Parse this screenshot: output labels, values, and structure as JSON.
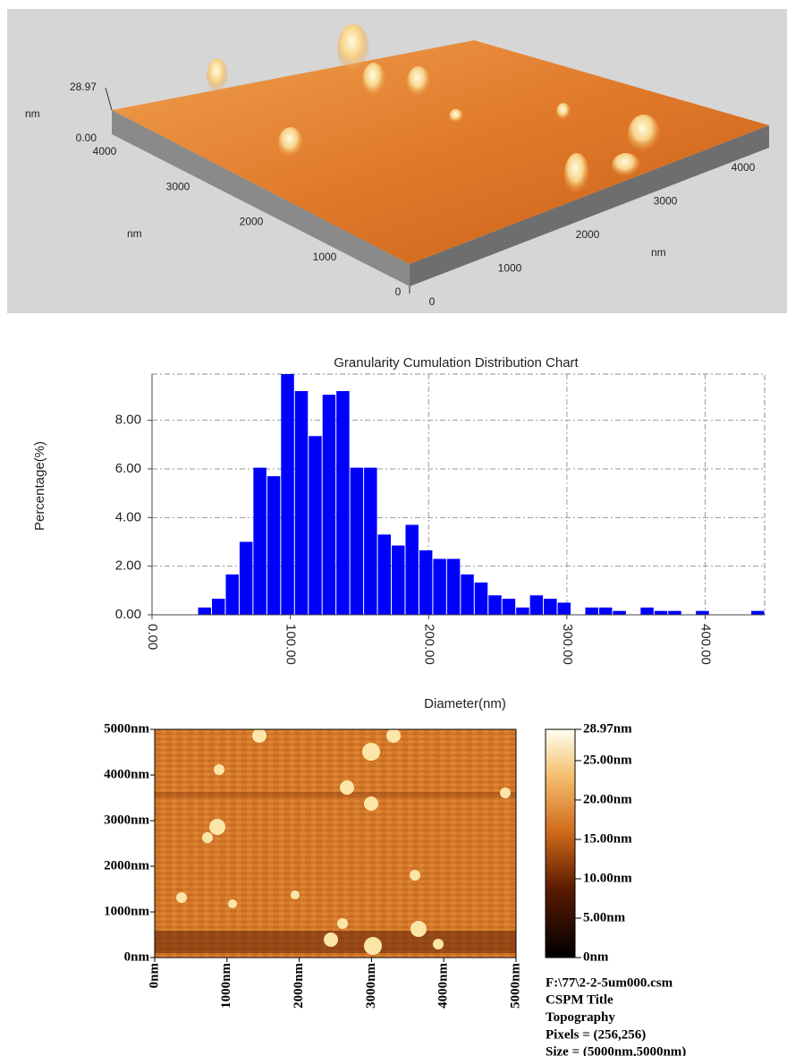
{
  "chart_data": [
    {
      "type": "surface3d",
      "xlim": [
        0,
        5000
      ],
      "ylim": [
        0,
        5000
      ],
      "zlim": [
        0,
        28.97
      ],
      "xticks": [
        0,
        1000,
        2000,
        3000,
        4000
      ],
      "yticks": [
        0,
        1000,
        2000,
        3000,
        4000
      ],
      "zticks": [
        {
          "value": 0,
          "label": "0.00"
        },
        {
          "value": 28.97,
          "label": "28.97"
        }
      ],
      "xlabel": "nm",
      "ylabel": "nm",
      "zlabel": "nm"
    },
    {
      "type": "histogram",
      "title": "Granularity Cumulation Distribution  Chart",
      "xlabel": "Diameter(nm)",
      "ylabel": "Percentage(%)",
      "color": "#0000ff",
      "grid": true,
      "bins": [
        33,
        43,
        53,
        63,
        73,
        83,
        93,
        103,
        113,
        123,
        133,
        143,
        153,
        163,
        173,
        183,
        193,
        203,
        213,
        223,
        233,
        243,
        253,
        263,
        273,
        283,
        293,
        303,
        313,
        323,
        333,
        343,
        353,
        363,
        373,
        383,
        393,
        403,
        413,
        423,
        433,
        443
      ],
      "counts": [
        0.3,
        0.66,
        1.66,
        3.0,
        6.05,
        5.7,
        9.9,
        9.2,
        7.35,
        9.05,
        9.2,
        6.05,
        6.05,
        3.3,
        2.85,
        3.7,
        2.65,
        2.3,
        2.3,
        1.66,
        1.33,
        0.8,
        0.66,
        0.3,
        0.8,
        0.66,
        0.5,
        0,
        0.3,
        0.3,
        0.16,
        0,
        0.3,
        0.16,
        0.16,
        0,
        0.16,
        0,
        0,
        0,
        0.16
      ],
      "xlim": [
        0,
        443
      ],
      "ylim": [
        0,
        9.9
      ],
      "xticks": [
        {
          "value": 0,
          "label": "0.00"
        },
        {
          "value": 100,
          "label": "100.00"
        },
        {
          "value": 200,
          "label": "200.00"
        },
        {
          "value": 300,
          "label": "300.00"
        },
        {
          "value": 400,
          "label": "400.00"
        }
      ],
      "yticks": [
        {
          "value": 0,
          "label": "0.00"
        },
        {
          "value": 2,
          "label": "2.00"
        },
        {
          "value": 4,
          "label": "4.00"
        },
        {
          "value": 6,
          "label": "6.00"
        },
        {
          "value": 8,
          "label": "8.00"
        }
      ]
    },
    {
      "type": "heatmap",
      "xlim": [
        0,
        5000
      ],
      "ylim": [
        0,
        5000
      ],
      "xticks": [
        {
          "value": 0,
          "label": "0nm"
        },
        {
          "value": 1000,
          "label": "1000nm"
        },
        {
          "value": 2000,
          "label": "2000nm"
        },
        {
          "value": 3000,
          "label": "3000nm"
        },
        {
          "value": 4000,
          "label": "4000nm"
        },
        {
          "value": 5000,
          "label": "5000nm"
        }
      ],
      "yticks": [
        {
          "value": 0,
          "label": "0nm"
        },
        {
          "value": 1000,
          "label": "1000nm"
        },
        {
          "value": 2000,
          "label": "2000nm"
        },
        {
          "value": 3000,
          "label": "3000nm"
        },
        {
          "value": 4000,
          "label": "4000nm"
        },
        {
          "value": 5000,
          "label": "5000nm"
        }
      ],
      "colorbar": {
        "lim": [
          0,
          28.97
        ],
        "ticks": [
          {
            "value": 0,
            "label": "0nm"
          },
          {
            "value": 5,
            "label": "5.00nm"
          },
          {
            "value": 10,
            "label": "10.00nm"
          },
          {
            "value": 15,
            "label": "15.00nm"
          },
          {
            "value": 20,
            "label": "20.00nm"
          },
          {
            "value": 25,
            "label": "25.00nm"
          },
          {
            "value": 28.97,
            "label": "28.97nm"
          }
        ]
      },
      "info": [
        "F:\\77\\2-2-5um000.csm",
        "CSPM Title",
        "Topography",
        "Pixels = (256,256)",
        "Size = (5000nm,5000nm)"
      ]
    }
  ]
}
